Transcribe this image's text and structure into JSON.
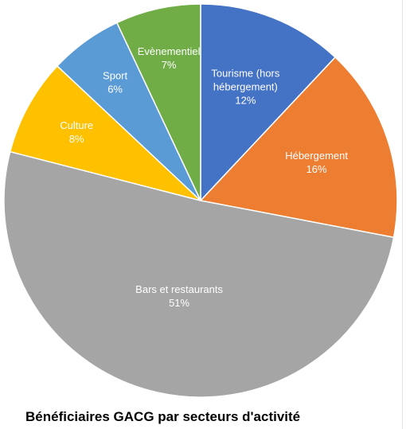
{
  "chart_data": {
    "type": "pie",
    "title": "Bénéficiaires GACG par secteurs d'activité",
    "slices": [
      {
        "label_lines": [
          "Tourisme (hors",
          "hébergement)"
        ],
        "value": 12,
        "value_label": "12%",
        "color": "#4472C4",
        "text_color": "#ffffff"
      },
      {
        "label_lines": [
          "Hébergement"
        ],
        "value": 16,
        "value_label": "16%",
        "color": "#ED7D31",
        "text_color": "#ffffff"
      },
      {
        "label_lines": [
          "Bars et restaurants"
        ],
        "value": 51,
        "value_label": "51%",
        "color": "#A5A5A5",
        "text_color": "#ffffff"
      },
      {
        "label_lines": [
          "Culture"
        ],
        "value": 8,
        "value_label": "8%",
        "color": "#FFC000",
        "text_color": "#ffffff"
      },
      {
        "label_lines": [
          "Sport"
        ],
        "value": 6,
        "value_label": "6%",
        "color": "#5B9BD5",
        "text_color": "#ffffff"
      },
      {
        "label_lines": [
          "Evènementiel"
        ],
        "value": 7,
        "value_label": "7%",
        "color": "#70AD47",
        "text_color": "#ffffff"
      }
    ]
  }
}
